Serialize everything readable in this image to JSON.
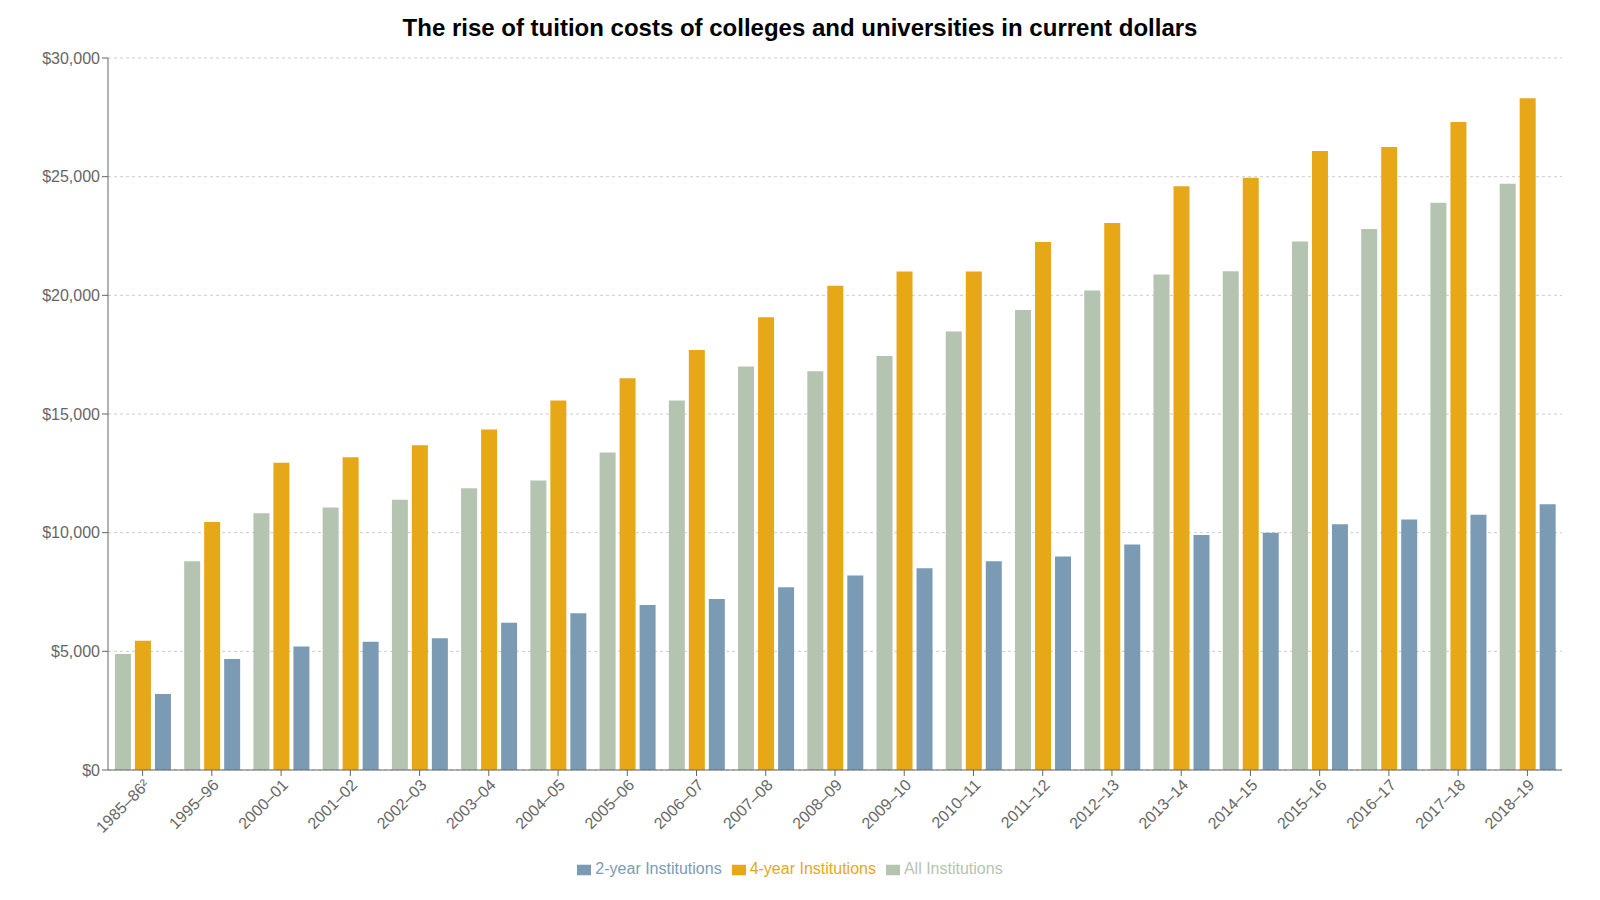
{
  "chart_data": {
    "type": "bar",
    "title": "The rise of tuition costs of colleges and universities in current dollars",
    "categories": [
      "1985–86²",
      "1995–96",
      "2000–01",
      "2001–02",
      "2002–03",
      "2003–04",
      "2004–05",
      "2005–06",
      "2006–07",
      "2007–08",
      "2008–09",
      "2009–10",
      "2010–11",
      "2011–12",
      "2012–13",
      "2013–14",
      "2014–15",
      "2015–16",
      "2016–17",
      "2017–18",
      "2018–19"
    ],
    "series": [
      {
        "name": "All Institutions",
        "color": "#b5c4b1",
        "values": [
          4885,
          8800,
          10820,
          11060,
          11390,
          11875,
          12200,
          13380,
          15570,
          17000,
          16800,
          17440,
          18480,
          19380,
          20200,
          20880,
          21020,
          22270,
          22790,
          23900,
          24700
        ]
      },
      {
        "name": "4-year Institutions",
        "color": "#e6a817",
        "values": [
          5450,
          10450,
          12950,
          13180,
          13680,
          14350,
          15570,
          16510,
          17700,
          19080,
          20400,
          21000,
          21000,
          22250,
          23050,
          24600,
          24950,
          26080,
          26250,
          27300,
          28300
        ]
      },
      {
        "name": "2-year Institutions",
        "color": "#7b9bb5",
        "values": [
          3200,
          4680,
          5200,
          5400,
          5550,
          6200,
          6600,
          6950,
          7200,
          7700,
          8200,
          8500,
          8800,
          9000,
          9500,
          9900,
          10000,
          10350,
          10550,
          10750,
          11200
        ]
      }
    ],
    "ylim": [
      0,
      30000
    ],
    "yticks": [
      {
        "value": 0,
        "label": "$0"
      },
      {
        "value": 5000,
        "label": "$5,000"
      },
      {
        "value": 10000,
        "label": "$10,000"
      },
      {
        "value": 15000,
        "label": "$15,000"
      },
      {
        "value": 20000,
        "label": "$20,000"
      },
      {
        "value": 25000,
        "label": "$25,000"
      },
      {
        "value": 30000,
        "label": "$30,000"
      }
    ],
    "grid": true,
    "legend": "bottom"
  }
}
